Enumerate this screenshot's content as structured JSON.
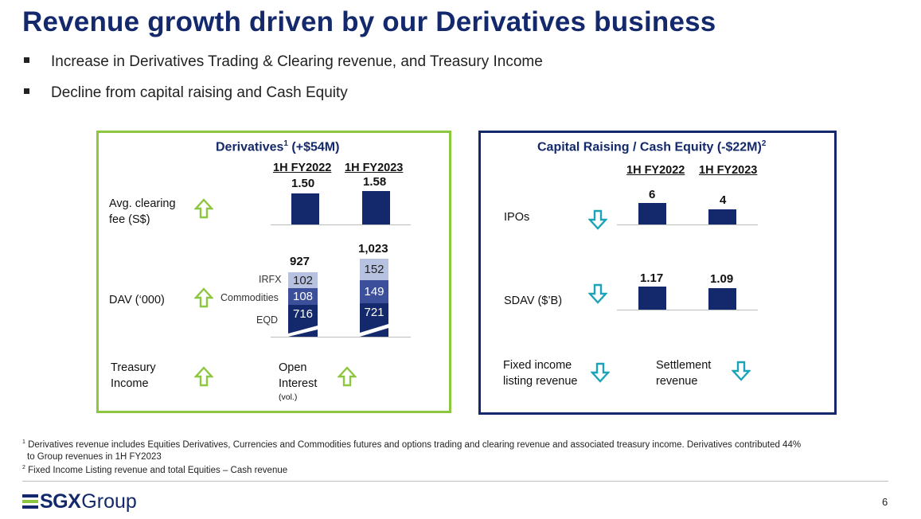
{
  "title": "Revenue growth driven by our Derivatives business",
  "bullets": [
    "Increase in Derivatives Trading & Clearing revenue, and Treasury Income",
    "Decline from capital raising and Cash Equity"
  ],
  "derivatives": {
    "title_main": "Derivatives",
    "title_sup": "1",
    "title_delta": " (+$54M)",
    "col_a": "1H FY2022",
    "col_b": "1H FY2023",
    "clearing_label_1": "Avg. clearing",
    "clearing_label_2": "fee (S$)",
    "clearing_a": "1.50",
    "clearing_b": "1.58",
    "dav_label": "DAV (‘000)",
    "dav_total_a": "927",
    "dav_total_b": "1,023",
    "seg_irfx": "IRFX",
    "seg_commodities": "Commodities",
    "seg_eqd": "EQD",
    "irfx_a": "102",
    "comm_a": "108",
    "eqd_a": "716",
    "irfx_b": "152",
    "comm_b": "149",
    "eqd_b": "721",
    "treasury_1": "Treasury",
    "treasury_2": "Income",
    "open_1": "Open",
    "open_2": "Interest",
    "open_3": "(vol.)"
  },
  "capital": {
    "title_main": "Capital Raising / Cash Equity (-$22M)",
    "title_sup": "2",
    "col_a": "1H FY2022",
    "col_b": "1H FY2023",
    "ipos_label": "IPOs",
    "ipos_a": "6",
    "ipos_b": "4",
    "sdav_label": "SDAV ($’B)",
    "sdav_a": "1.17",
    "sdav_b": "1.09",
    "fixed_1": "Fixed income",
    "fixed_2": "listing revenue",
    "settle_1": "Settlement",
    "settle_2": "revenue"
  },
  "footnotes": {
    "fn1_sup": "1",
    "fn1_line1": " Derivatives revenue includes Equities Derivatives, Currencies and Commodities futures and options trading and clearing revenue and associated treasury income. Derivatives contributed 44%",
    "fn1_line2": "to Group revenues in 1H FY2023",
    "fn2_sup": "2",
    "fn2_text": " Fixed Income Listing revenue and total Equities – Cash revenue"
  },
  "logo": {
    "text_a": "SGX",
    "text_b": "Group"
  },
  "page_number": "6",
  "colors": {
    "navy": "#13296b",
    "green": "#8dc63f",
    "teal": "#1ba3b8",
    "medium_blue": "#3b4f9a",
    "light_blue": "#b7c2e0"
  },
  "icons": {
    "up": "green-up-arrow-icon",
    "down": "teal-down-arrow-icon"
  }
}
